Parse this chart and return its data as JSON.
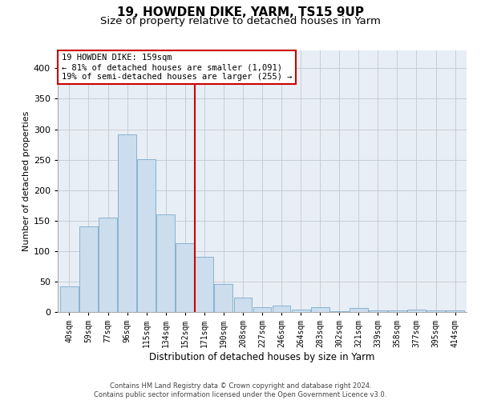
{
  "title": "19, HOWDEN DIKE, YARM, TS15 9UP",
  "subtitle": "Size of property relative to detached houses in Yarm",
  "xlabel": "Distribution of detached houses by size in Yarm",
  "ylabel": "Number of detached properties",
  "footer_line1": "Contains HM Land Registry data © Crown copyright and database right 2024.",
  "footer_line2": "Contains public sector information licensed under the Open Government Licence v3.0.",
  "categories": [
    "40sqm",
    "59sqm",
    "77sqm",
    "96sqm",
    "115sqm",
    "134sqm",
    "152sqm",
    "171sqm",
    "190sqm",
    "208sqm",
    "227sqm",
    "246sqm",
    "264sqm",
    "283sqm",
    "302sqm",
    "321sqm",
    "339sqm",
    "358sqm",
    "377sqm",
    "395sqm",
    "414sqm"
  ],
  "values": [
    42,
    140,
    155,
    292,
    251,
    160,
    113,
    91,
    46,
    23,
    8,
    10,
    4,
    8,
    1,
    7,
    3,
    2,
    4,
    3,
    3
  ],
  "bar_color": "#ccdded",
  "bar_edge_color": "#7aabcc",
  "vline_color": "#cc0000",
  "vline_position": 6.5,
  "annotation_line1": "19 HOWDEN DIKE: 159sqm",
  "annotation_line2": "← 81% of detached houses are smaller (1,091)",
  "annotation_line3": "19% of semi-detached houses are larger (255) →",
  "annotation_box_facecolor": "#ffffff",
  "annotation_box_edgecolor": "#cc0000",
  "ylim_max": 430,
  "yticks": [
    0,
    50,
    100,
    150,
    200,
    250,
    300,
    350,
    400
  ],
  "grid_color": "#c5cdd8",
  "background_color": "#e8eef5",
  "title_fontsize": 11,
  "subtitle_fontsize": 9.5,
  "ylabel_fontsize": 8,
  "xlabel_fontsize": 8.5,
  "tick_fontsize": 7,
  "annotation_fontsize": 7.5,
  "footer_fontsize": 6
}
